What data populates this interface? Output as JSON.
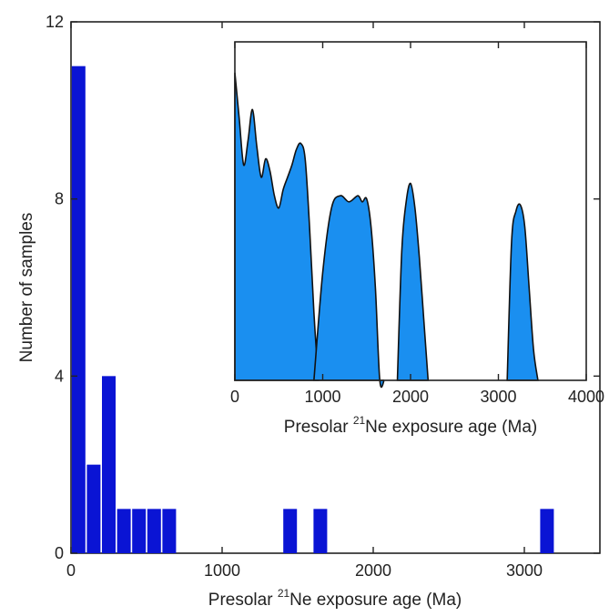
{
  "chart_data": [
    {
      "type": "bar",
      "name": "main-histogram",
      "xlabel_parts": {
        "prefix": "Presolar ",
        "superscript": "21",
        "suffix": "Ne exposure age (Ma)"
      },
      "ylabel": "Number of samples",
      "xlim": [
        0,
        3500
      ],
      "ylim": [
        0,
        12
      ],
      "xticks": [
        0,
        1000,
        2000,
        3000
      ],
      "yticks": [
        0,
        4,
        8,
        12
      ],
      "bin_width": 100,
      "bars": [
        {
          "x": 0,
          "value": 11
        },
        {
          "x": 100,
          "value": 2
        },
        {
          "x": 200,
          "value": 4
        },
        {
          "x": 300,
          "value": 1
        },
        {
          "x": 400,
          "value": 1
        },
        {
          "x": 500,
          "value": 1
        },
        {
          "x": 600,
          "value": 1
        },
        {
          "x": 1400,
          "value": 1
        },
        {
          "x": 1600,
          "value": 1
        },
        {
          "x": 3100,
          "value": 1
        }
      ],
      "color": "#0a14d4",
      "grid": false
    },
    {
      "type": "area",
      "name": "inset-density",
      "xlabel_parts": {
        "prefix": "Presolar ",
        "superscript": "21",
        "suffix": "Ne exposure age (Ma)"
      },
      "xlim": [
        0,
        4000
      ],
      "xticks": [
        0,
        1000,
        2000,
        3000,
        4000
      ],
      "ylim": [
        0,
        1.1
      ],
      "x": [
        0,
        50,
        100,
        150,
        200,
        250,
        300,
        350,
        400,
        450,
        500,
        550,
        600,
        650,
        700,
        750,
        800,
        850,
        900,
        950
      ],
      "y": [
        1.0,
        0.85,
        0.7,
        0.78,
        0.88,
        0.76,
        0.66,
        0.72,
        0.68,
        0.6,
        0.56,
        0.62,
        0.66,
        0.7,
        0.75,
        0.77,
        0.72,
        0.5,
        0.22,
        0.0
      ],
      "segments": [
        {
          "x": [
            900,
            1000,
            1100,
            1200,
            1300,
            1400,
            1450,
            1500,
            1550,
            1600,
            1650,
            1700
          ],
          "y": [
            0.0,
            0.35,
            0.56,
            0.6,
            0.58,
            0.6,
            0.58,
            0.59,
            0.5,
            0.3,
            0.0,
            0.0
          ]
        },
        {
          "x": [
            1850,
            1900,
            1950,
            2000,
            2050,
            2100,
            2150,
            2200
          ],
          "y": [
            0.0,
            0.42,
            0.58,
            0.64,
            0.56,
            0.4,
            0.2,
            0.0
          ]
        },
        {
          "x": [
            3100,
            3150,
            3200,
            3250,
            3300,
            3350,
            3400,
            3450
          ],
          "y": [
            0.0,
            0.45,
            0.55,
            0.57,
            0.5,
            0.3,
            0.1,
            0.0
          ]
        }
      ],
      "color": "#1a8ff0",
      "grid": false
    }
  ]
}
